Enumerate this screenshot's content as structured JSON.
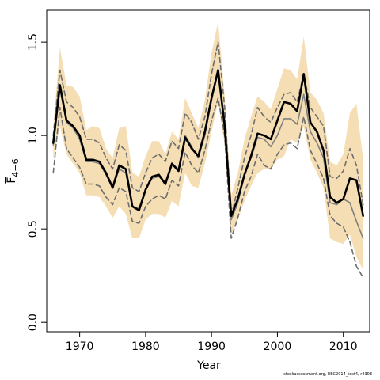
{
  "chart_data": {
    "type": "line",
    "xlabel": "Year",
    "ylabel_base": "F",
    "ylabel_sub": "4−6",
    "xlim": [
      1965,
      2014
    ],
    "ylim": [
      -0.05,
      1.67
    ],
    "xticks": [
      1970,
      1980,
      1990,
      2000,
      2010
    ],
    "yticks": [
      0.0,
      0.5,
      1.0,
      1.5
    ],
    "ytick_labels": [
      "0.0",
      "0.5",
      "1.0",
      "1.5"
    ],
    "x": [
      1966,
      1967,
      1968,
      1969,
      1970,
      1971,
      1972,
      1973,
      1974,
      1975,
      1976,
      1977,
      1978,
      1979,
      1980,
      1981,
      1982,
      1983,
      1984,
      1985,
      1986,
      1987,
      1988,
      1989,
      1990,
      1991,
      1992,
      1993,
      1994,
      1995,
      1996,
      1997,
      1998,
      1999,
      2000,
      2001,
      2002,
      2003,
      2004,
      2005,
      2006,
      2007,
      2008,
      2009,
      2010,
      2011,
      2012,
      2013
    ],
    "series": [
      {
        "role": "band",
        "color": "#f5deb3",
        "lower": [
          0.88,
          1.05,
          0.9,
          0.85,
          0.8,
          0.68,
          0.68,
          0.67,
          0.62,
          0.56,
          0.62,
          0.58,
          0.45,
          0.45,
          0.55,
          0.58,
          0.58,
          0.56,
          0.65,
          0.62,
          0.8,
          0.73,
          0.72,
          0.85,
          1.02,
          1.18,
          0.95,
          0.47,
          0.55,
          0.65,
          0.73,
          0.8,
          0.82,
          0.82,
          0.87,
          0.89,
          0.98,
          0.96,
          1.05,
          0.87,
          0.8,
          0.72,
          0.45,
          0.43,
          0.42,
          0.47,
          0.35,
          0.28
        ],
        "upper": [
          1.05,
          1.47,
          1.27,
          1.26,
          1.21,
          1.03,
          1.05,
          1.04,
          0.93,
          0.88,
          1.04,
          1.05,
          0.8,
          0.78,
          0.89,
          0.97,
          0.97,
          0.9,
          1.02,
          0.98,
          1.2,
          1.12,
          1.04,
          1.19,
          1.44,
          1.61,
          1.21,
          0.68,
          0.8,
          0.98,
          1.1,
          1.21,
          1.18,
          1.14,
          1.25,
          1.36,
          1.35,
          1.3,
          1.53,
          1.23,
          1.19,
          1.12,
          0.86,
          0.84,
          0.9,
          1.12,
          1.17,
          0.87
        ]
      },
      {
        "role": "upper-dashed",
        "color": "#6e6e6e",
        "values": [
          1.0,
          1.35,
          1.18,
          1.15,
          1.1,
          0.98,
          0.98,
          0.96,
          0.88,
          0.82,
          0.95,
          0.92,
          0.72,
          0.7,
          0.8,
          0.88,
          0.9,
          0.86,
          0.97,
          0.93,
          1.12,
          1.07,
          0.98,
          1.1,
          1.33,
          1.5,
          1.15,
          0.57,
          0.72,
          0.88,
          1.0,
          1.15,
          1.1,
          1.07,
          1.15,
          1.22,
          1.23,
          1.18,
          1.33,
          1.15,
          1.1,
          1.05,
          0.78,
          0.77,
          0.81,
          0.93,
          0.84,
          0.63
        ]
      },
      {
        "role": "lower-dashed",
        "color": "#6e6e6e",
        "values": [
          0.8,
          1.15,
          0.93,
          0.88,
          0.83,
          0.74,
          0.74,
          0.73,
          0.67,
          0.63,
          0.72,
          0.7,
          0.54,
          0.53,
          0.62,
          0.66,
          0.68,
          0.66,
          0.76,
          0.73,
          0.91,
          0.84,
          0.8,
          0.92,
          1.08,
          1.2,
          1.0,
          0.45,
          0.56,
          0.7,
          0.78,
          0.9,
          0.84,
          0.82,
          0.9,
          0.95,
          0.96,
          0.93,
          1.1,
          0.92,
          0.85,
          0.77,
          0.57,
          0.53,
          0.51,
          0.43,
          0.3,
          0.24
        ]
      },
      {
        "role": "gray-solid",
        "color": "#808080",
        "values": [
          0.95,
          1.25,
          1.07,
          1.04,
          0.98,
          0.86,
          0.86,
          0.85,
          0.79,
          0.72,
          0.82,
          0.8,
          0.62,
          0.61,
          0.71,
          0.77,
          0.78,
          0.75,
          0.85,
          0.82,
          1.0,
          0.94,
          0.88,
          1.0,
          1.2,
          1.34,
          1.08,
          0.55,
          0.64,
          0.79,
          0.88,
          0.99,
          0.98,
          0.94,
          1.0,
          1.09,
          1.09,
          1.06,
          1.22,
          1.02,
          0.96,
          0.88,
          0.64,
          0.63,
          0.66,
          0.64,
          0.54,
          0.45
        ]
      },
      {
        "role": "black-solid",
        "color": "#000000",
        "values": [
          0.96,
          1.27,
          1.08,
          1.05,
          1.0,
          0.87,
          0.87,
          0.86,
          0.8,
          0.72,
          0.84,
          0.82,
          0.62,
          0.6,
          0.71,
          0.78,
          0.79,
          0.74,
          0.85,
          0.81,
          0.99,
          0.93,
          0.89,
          1.02,
          1.2,
          1.35,
          1.05,
          0.57,
          0.66,
          0.79,
          0.89,
          1.01,
          1.0,
          0.98,
          1.08,
          1.18,
          1.17,
          1.13,
          1.33,
          1.07,
          1.02,
          0.92,
          0.67,
          0.64,
          0.66,
          0.77,
          0.76,
          0.57
        ]
      }
    ]
  },
  "footer_text": "stockassessment.org, EBC2014_test4, r4303"
}
